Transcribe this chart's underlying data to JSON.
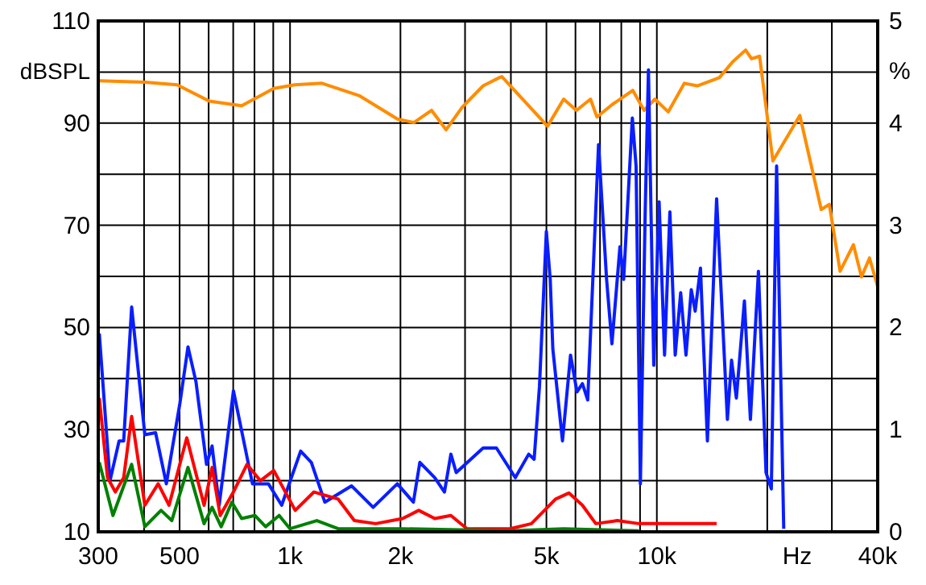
{
  "chart_data": {
    "type": "line",
    "ylabel": "dBSPL",
    "y2label": "%",
    "xlabel": "Hz",
    "log": "x",
    "grid": true,
    "marker": "none",
    "line_style": "solid",
    "xlim": [
      300,
      40000
    ],
    "xticks": [
      300,
      {
        "value": 400,
        "label": null
      },
      500,
      {
        "value": 600,
        "label": null
      },
      {
        "value": 700,
        "label": null
      },
      {
        "value": 800,
        "label": null
      },
      {
        "value": 900,
        "label": null
      },
      {
        "value": 1000,
        "label": "1k"
      },
      {
        "value": 2000,
        "label": "2k"
      },
      {
        "value": 3000,
        "label": null
      },
      {
        "value": 4000,
        "label": null
      },
      {
        "value": 5000,
        "label": "5k"
      },
      {
        "value": 6000,
        "label": null
      },
      {
        "value": 7000,
        "label": null
      },
      {
        "value": 8000,
        "label": null
      },
      {
        "value": 9000,
        "label": null
      },
      {
        "value": 10000,
        "label": "10k"
      },
      {
        "value": 20000,
        "label": null
      },
      {
        "value": 30000,
        "label": null
      },
      {
        "value": 40000,
        "label": "40k"
      }
    ],
    "ylim": [
      10,
      110
    ],
    "yticks": [
      10,
      {
        "value": 20,
        "label": null
      },
      30,
      {
        "value": 40,
        "label": null
      },
      50,
      {
        "value": 60,
        "label": null
      },
      70,
      {
        "value": 80,
        "label": null
      },
      90,
      {
        "value": 100,
        "label": null
      },
      110
    ],
    "y2lim": [
      0,
      5
    ],
    "y2ticks": [
      0,
      1,
      2,
      3,
      4,
      5
    ],
    "series": [
      {
        "color": "#ff8c00",
        "x": [
          302,
          402,
          492,
          602,
          738,
          903,
          1030,
          1222,
          1542,
          1963,
          2176,
          2432,
          2663,
          2946,
          3360,
          3718,
          3781,
          5035,
          5570,
          6039,
          6594,
          6865,
          7543,
          8600,
          9231,
          9880,
          10744,
          11886,
          12886,
          14802,
          16096,
          17456,
          18120,
          19059,
          20720,
          24540,
          28065,
          29520,
          31590,
          34350,
          36130,
          38000,
          40000
        ],
        "values": [
          98.3,
          98.0,
          97.5,
          94.3,
          93.4,
          96.8,
          97.5,
          97.8,
          95.4,
          90.8,
          90.1,
          92.5,
          88.7,
          93.1,
          97.3,
          98.9,
          99.1,
          89.4,
          94.7,
          92.5,
          94.7,
          91.2,
          93.6,
          96.4,
          92.5,
          94.7,
          92.2,
          97.8,
          97.3,
          98.9,
          102.0,
          104.3,
          102.6,
          103.1,
          82.6,
          91.5,
          73.1,
          74.1,
          61.0,
          66.2,
          59.9,
          63.6,
          58.0
        ]
      },
      {
        "color": "#0a1eff",
        "axis": "y2",
        "x": [
          302,
          323,
          342,
          352,
          370,
          402,
          430,
          460,
          501,
          527,
          554,
          592,
          613,
          641,
          701,
          790,
          873,
          949,
          1069,
          1143,
          1244,
          1471,
          1685,
          1961,
          2169,
          2259,
          2481,
          2636,
          2745,
          2838,
          3360,
          3654,
          4113,
          4474,
          4629,
          4786,
          4998,
          5121,
          5205,
          5530,
          5817,
          6057,
          6267,
          6480,
          6935,
          7295,
          7543,
          7932,
          8119,
          8574,
          8778,
          9018,
          9297,
          9487,
          9809,
          10143,
          10497,
          10853,
          11222,
          11614,
          12008,
          12414,
          12721,
          13151,
          13736,
          14553,
          15571,
          15983,
          16476,
          17327,
          17991,
          18921,
          19845,
          20517,
          21209,
          22178
        ],
        "values": [
          1.94,
          0.5,
          0.89,
          0.89,
          2.2,
          0.95,
          0.97,
          0.47,
          1.26,
          1.81,
          1.47,
          0.66,
          0.84,
          0.26,
          1.38,
          0.47,
          0.47,
          0.26,
          0.79,
          0.68,
          0.29,
          0.45,
          0.24,
          0.47,
          0.29,
          0.68,
          0.53,
          0.39,
          0.76,
          0.58,
          0.82,
          0.82,
          0.53,
          0.76,
          0.71,
          1.42,
          2.94,
          2.47,
          1.79,
          0.89,
          1.73,
          1.37,
          1.45,
          1.29,
          3.79,
          2.47,
          1.84,
          2.79,
          2.47,
          4.05,
          3.58,
          0.47,
          3.15,
          4.52,
          1.63,
          3.23,
          1.73,
          3.13,
          1.73,
          2.34,
          1.73,
          2.37,
          2.16,
          2.58,
          0.89,
          3.26,
          1.1,
          1.68,
          1.31,
          2.26,
          1.1,
          2.55,
          0.58,
          0.42,
          3.58,
          0.03
        ]
      },
      {
        "color": "#ff0000",
        "axis": "y2",
        "x": [
          302,
          318,
          334,
          352,
          370,
          402,
          437,
          468,
          523,
          583,
          613,
          645,
          701,
          763,
          830,
          903,
          1033,
          1162,
          1353,
          1497,
          1712,
          2027,
          2243,
          2481,
          2745,
          3037,
          3979,
          4550,
          5296,
          5757,
          6267,
          6816,
          7798,
          8928,
          14553
        ],
        "values": [
          1.31,
          0.53,
          0.39,
          0.53,
          1.13,
          0.26,
          0.47,
          0.26,
          0.92,
          0.26,
          0.63,
          0.16,
          0.39,
          0.66,
          0.5,
          0.6,
          0.21,
          0.39,
          0.32,
          0.11,
          0.08,
          0.13,
          0.21,
          0.13,
          0.16,
          0.03,
          0.03,
          0.08,
          0.32,
          0.38,
          0.26,
          0.08,
          0.11,
          0.08,
          0.08
        ]
      },
      {
        "color": "#008000",
        "axis": "y2",
        "x": [
          302,
          329,
          370,
          402,
          445,
          476,
          527,
          583,
          613,
          649,
          694,
          738,
          802,
          858,
          934,
          1000,
          1183,
          1353,
          2027,
          3979,
          5570,
          8928
        ],
        "values": [
          0.68,
          0.16,
          0.66,
          0.05,
          0.21,
          0.11,
          0.63,
          0.08,
          0.24,
          0.05,
          0.29,
          0.13,
          0.16,
          0.05,
          0.16,
          0.03,
          0.11,
          0.03,
          0.03,
          0.01,
          0.03,
          0.01
        ]
      }
    ]
  }
}
